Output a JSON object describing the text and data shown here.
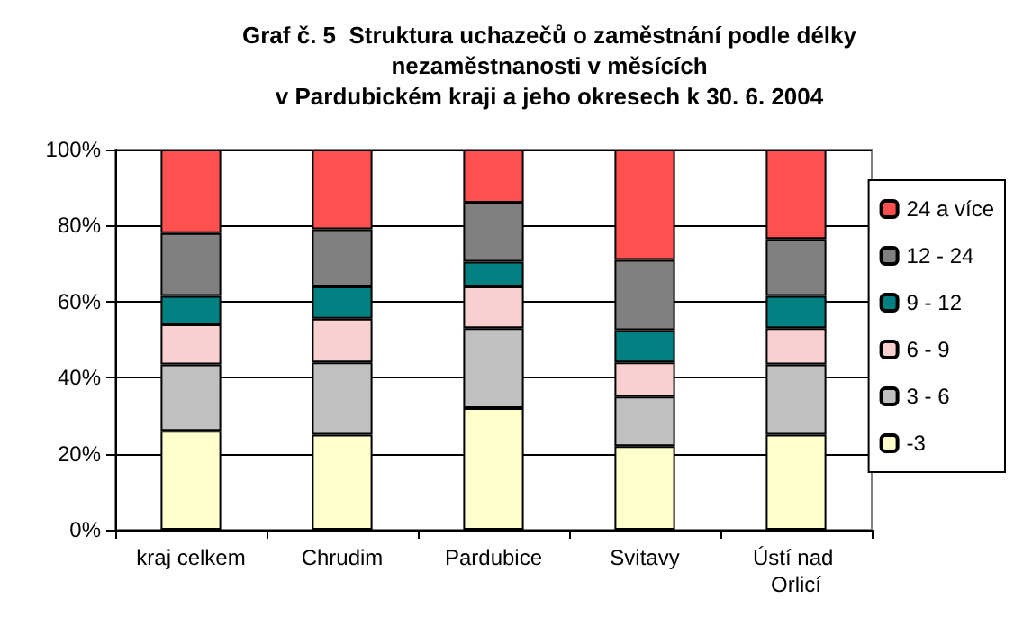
{
  "chart_data": {
    "type": "bar",
    "title": "Graf č. 5  Struktura uchazečů o zaměstnání podle délky\nnezaměstnanosti v měsících\nv Pardubickém kraji a jeho okresech k 30. 6. 2004",
    "categories": [
      "kraj celkem",
      "Chrudim",
      "Pardubice",
      "Svitavy",
      "Ústí nad Orlicí"
    ],
    "stacked": true,
    "series": [
      {
        "name": "-3",
        "color": "#ffffcc",
        "values": [
          26,
          25,
          32,
          22,
          25
        ]
      },
      {
        "name": "3 - 6",
        "color": "#c0c0c0",
        "values": [
          17.5,
          19,
          21,
          13,
          18.5
        ]
      },
      {
        "name": "6 - 9",
        "color": "#f8d0d0",
        "values": [
          10.5,
          11.5,
          11,
          9,
          9.5
        ]
      },
      {
        "name": "9 - 12",
        "color": "#008080",
        "values": [
          7.5,
          8.5,
          6.5,
          8.5,
          8.5
        ]
      },
      {
        "name": "12 - 24",
        "color": "#808080",
        "values": [
          16.5,
          15,
          15.5,
          18.5,
          15
        ]
      },
      {
        "name": "24 a více",
        "color": "#ff5050",
        "values": [
          22,
          21,
          14,
          29,
          23.5
        ]
      }
    ],
    "ylim": [
      0,
      100
    ],
    "yticks": [
      {
        "value": 0,
        "label": "0%"
      },
      {
        "value": 20,
        "label": "20%"
      },
      {
        "value": 40,
        "label": "40%"
      },
      {
        "value": 60,
        "label": "60%"
      },
      {
        "value": 80,
        "label": "80%"
      },
      {
        "value": 100,
        "label": "100%"
      }
    ],
    "grid": "y",
    "legend": "right"
  }
}
